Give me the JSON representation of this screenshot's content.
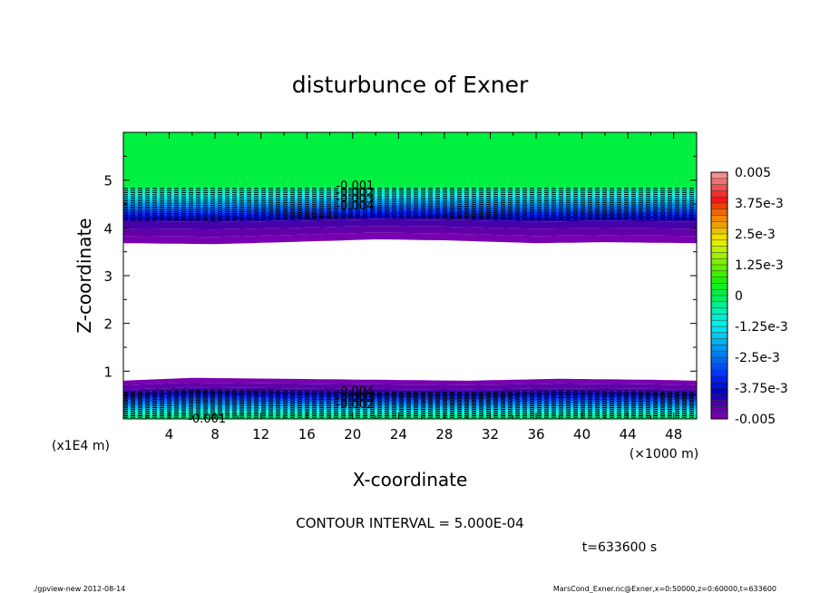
{
  "chart_data": {
    "type": "heatmap",
    "subtype": "filled-contour",
    "title": "disturbunce of Exner",
    "xlabel": "X-coordinate",
    "ylabel": "Z-coordinate",
    "x_unit_note": "(×1000 m)",
    "y_unit_note": "(x1E4 m)",
    "xlim": [
      0,
      50
    ],
    "ylim": [
      0,
      6
    ],
    "xticks": [
      4,
      8,
      12,
      16,
      20,
      24,
      28,
      32,
      36,
      40,
      44,
      48
    ],
    "yticks": [
      1,
      2,
      3,
      4,
      5
    ],
    "grid": false,
    "colorbar": {
      "placement": "right",
      "labels": [
        "0.005",
        "3.75e-3",
        "2.5e-3",
        "1.25e-3",
        "0",
        "-1.25e-3",
        "-2.5e-3",
        "-3.75e-3",
        "-0.005"
      ],
      "range": [
        -0.005,
        0.005
      ],
      "levels": [
        {
          "lo": 0.00475,
          "hi": 0.005,
          "color": "#f59090"
        },
        {
          "lo": 0.0045,
          "hi": 0.00475,
          "color": "#f07070"
        },
        {
          "lo": 0.00425,
          "hi": 0.0045,
          "color": "#f05050"
        },
        {
          "lo": 0.004,
          "hi": 0.00425,
          "color": "#f03030"
        },
        {
          "lo": 0.00375,
          "hi": 0.004,
          "color": "#f01818"
        },
        {
          "lo": 0.0035,
          "hi": 0.00375,
          "color": "#f04000"
        },
        {
          "lo": 0.00325,
          "hi": 0.0035,
          "color": "#f06800"
        },
        {
          "lo": 0.003,
          "hi": 0.00325,
          "color": "#f08800"
        },
        {
          "lo": 0.00275,
          "hi": 0.003,
          "color": "#f0a000"
        },
        {
          "lo": 0.0025,
          "hi": 0.00275,
          "color": "#f0c000"
        },
        {
          "lo": 0.00225,
          "hi": 0.0025,
          "color": "#f0e000"
        },
        {
          "lo": 0.002,
          "hi": 0.00225,
          "color": "#e0f000"
        },
        {
          "lo": 0.00175,
          "hi": 0.002,
          "color": "#c0f000"
        },
        {
          "lo": 0.0015,
          "hi": 0.00175,
          "color": "#a0f000"
        },
        {
          "lo": 0.00125,
          "hi": 0.0015,
          "color": "#80f000"
        },
        {
          "lo": 0.001,
          "hi": 0.00125,
          "color": "#60f000"
        },
        {
          "lo": 0.00075,
          "hi": 0.001,
          "color": "#40f000"
        },
        {
          "lo": 0.0005,
          "hi": 0.00075,
          "color": "#20f000"
        },
        {
          "lo": 0.00025,
          "hi": 0.0005,
          "color": "#10f020"
        },
        {
          "lo": 0.0,
          "hi": 0.00025,
          "color": "#00f040"
        },
        {
          "lo": -0.00025,
          "hi": 0.0,
          "color": "#00f060"
        },
        {
          "lo": -0.0005,
          "hi": -0.00025,
          "color": "#00f090"
        },
        {
          "lo": -0.00075,
          "hi": -0.0005,
          "color": "#00f0b0"
        },
        {
          "lo": -0.001,
          "hi": -0.00075,
          "color": "#00f0d0"
        },
        {
          "lo": -0.00125,
          "hi": -0.001,
          "color": "#00f0e8"
        },
        {
          "lo": -0.0015,
          "hi": -0.00125,
          "color": "#00e0f0"
        },
        {
          "lo": -0.00175,
          "hi": -0.0015,
          "color": "#00c8f0"
        },
        {
          "lo": -0.002,
          "hi": -0.00175,
          "color": "#00b0f0"
        },
        {
          "lo": -0.00225,
          "hi": -0.002,
          "color": "#0098f0"
        },
        {
          "lo": -0.0025,
          "hi": -0.00225,
          "color": "#0080f0"
        },
        {
          "lo": -0.00275,
          "hi": -0.0025,
          "color": "#0068f0"
        },
        {
          "lo": -0.003,
          "hi": -0.00275,
          "color": "#0050f0"
        },
        {
          "lo": -0.00325,
          "hi": -0.003,
          "color": "#0038f0"
        },
        {
          "lo": -0.0035,
          "hi": -0.00325,
          "color": "#0020e8"
        },
        {
          "lo": -0.00375,
          "hi": -0.0035,
          "color": "#0010d8"
        },
        {
          "lo": -0.004,
          "hi": -0.00375,
          "color": "#0000c0"
        },
        {
          "lo": -0.00425,
          "hi": -0.004,
          "color": "#2000b0"
        },
        {
          "lo": -0.0045,
          "hi": -0.00425,
          "color": "#4800a8"
        },
        {
          "lo": -0.00475,
          "hi": -0.0045,
          "color": "#6000a8"
        },
        {
          "lo": -0.005,
          "hi": -0.00475,
          "color": "#7800b0"
        }
      ]
    },
    "fields": {
      "upper_green_region": {
        "z_range": [
          4.87,
          6.0
        ],
        "value_range": [
          0,
          0.00025
        ]
      },
      "upper_negative_band": {
        "z_range": [
          3.65,
          4.87
        ],
        "levels_top_to_bottom": [
          -0.00025,
          -0.0005,
          -0.00075,
          -0.001,
          -0.00125,
          -0.0015,
          -0.00175,
          -0.002,
          -0.00225,
          -0.0025,
          -0.00275,
          -0.003,
          -0.00325,
          -0.0035,
          -0.00375,
          -0.004,
          -0.00425,
          -0.0045,
          -0.00475,
          -0.005
        ],
        "lower_edge_profile": [
          {
            "x": 0,
            "z": 3.68
          },
          {
            "x": 8,
            "z": 3.66
          },
          {
            "x": 14,
            "z": 3.7
          },
          {
            "x": 22,
            "z": 3.76
          },
          {
            "x": 28,
            "z": 3.74
          },
          {
            "x": 36,
            "z": 3.68
          },
          {
            "x": 42,
            "z": 3.7
          },
          {
            "x": 50,
            "z": 3.68
          }
        ]
      },
      "white_region": {
        "z_range": [
          0.8,
          3.65
        ],
        "note": "values outside plotted range"
      },
      "lower_negative_band": {
        "z_range": [
          0,
          0.85
        ],
        "levels_top_to_bottom": [
          -0.005,
          -0.00475,
          -0.0045,
          -0.00425,
          -0.004,
          -0.00375,
          -0.0035,
          -0.00325,
          -0.003,
          -0.00275,
          -0.0025,
          -0.00225,
          -0.002,
          -0.00175,
          -0.0015,
          -0.00125,
          -0.001,
          -0.00075,
          -0.0005,
          -0.00025
        ],
        "upper_edge_profile": [
          {
            "x": 0,
            "z": 0.8
          },
          {
            "x": 6,
            "z": 0.86
          },
          {
            "x": 14,
            "z": 0.84
          },
          {
            "x": 22,
            "z": 0.82
          },
          {
            "x": 30,
            "z": 0.8
          },
          {
            "x": 38,
            "z": 0.84
          },
          {
            "x": 46,
            "z": 0.82
          },
          {
            "x": 50,
            "z": 0.8
          }
        ]
      }
    },
    "contour_labels": [
      {
        "text": "-0.001",
        "x": 20.2,
        "z": 4.9
      },
      {
        "text": "-0.002",
        "x": 20.2,
        "z": 4.76
      },
      {
        "text": "-0.003",
        "x": 20.2,
        "z": 4.62
      },
      {
        "text": "-0.004",
        "x": 20.2,
        "z": 4.48
      },
      {
        "text": "-0.004",
        "x": 20.2,
        "z": 0.6
      },
      {
        "text": "-0.003",
        "x": 20.2,
        "z": 0.46
      },
      {
        "text": "-0.002",
        "x": 20.2,
        "z": 0.32
      },
      {
        "text": "-0.001",
        "x": 7.3,
        "z": 0.02
      }
    ],
    "annotations": {
      "contour_interval": "CONTOUR INTERVAL = 5.000E-04",
      "time": "t=633600 s"
    }
  },
  "footer": {
    "left": "./gpview-new   2012-08-14",
    "right": "MarsCond_Exner.nc@Exner,x=0:50000,z=0:60000,t=633600"
  }
}
